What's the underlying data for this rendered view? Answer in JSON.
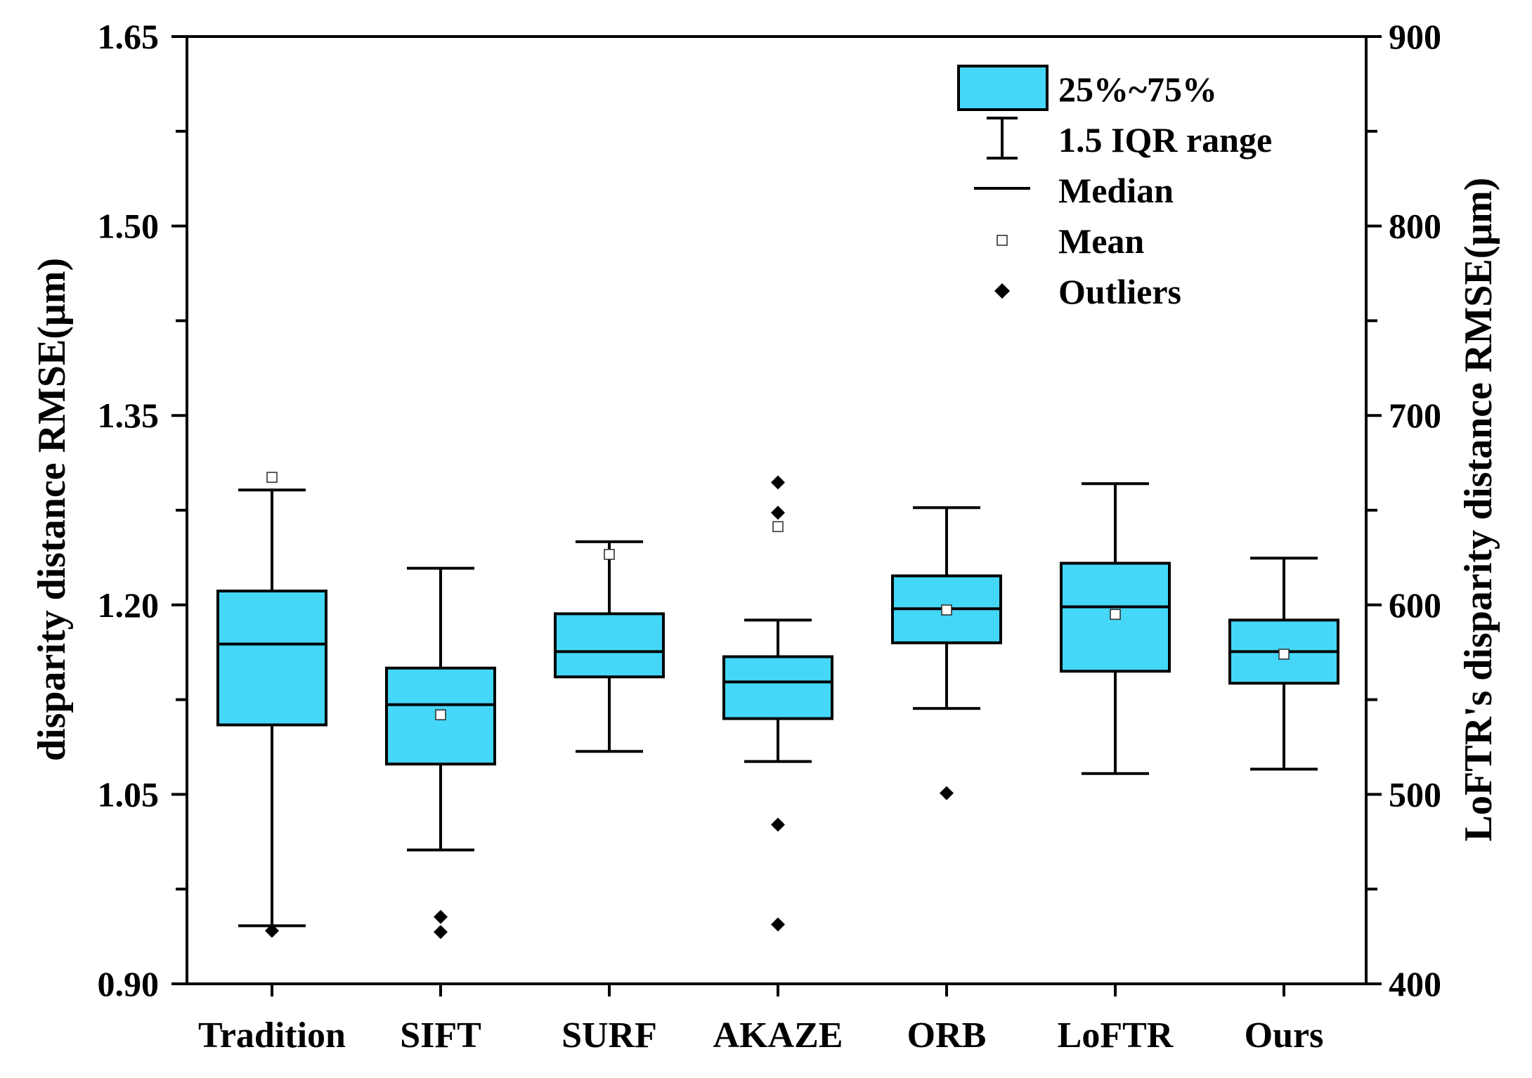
{
  "chart_data": {
    "type": "box",
    "ylabel_left": "disparity distance RMSE(μm)",
    "ylabel_right": "LoFTR's disparity distance RMSE(μm)",
    "ylim_left": [
      0.9,
      1.65
    ],
    "ylim_right": [
      400,
      900
    ],
    "yticks_left": [
      "0.90",
      "1.05",
      "1.20",
      "1.35",
      "1.50",
      "1.65"
    ],
    "yticks_right": [
      "400",
      "500",
      "600",
      "700",
      "800",
      "900"
    ],
    "categories": [
      "Tradition",
      "SIFT",
      "SURF",
      "AKAZE",
      "ORB",
      "LoFTR",
      "Ours"
    ],
    "box_color": "#44d7f8",
    "legend": {
      "position": "top-right",
      "items": [
        "25%~75%",
        "1.5 IQR range",
        "Median",
        "Mean",
        "Outliers"
      ]
    },
    "boxes": [
      {
        "name": "Tradition",
        "axis": "left",
        "whisker_low": 0.946,
        "q1": 1.105,
        "median": 1.169,
        "q3": 1.211,
        "whisker_high": 1.291,
        "mean": 1.301,
        "outliers": [
          0.942
        ]
      },
      {
        "name": "SIFT",
        "axis": "left",
        "whisker_low": 1.006,
        "q1": 1.074,
        "median": 1.121,
        "q3": 1.15,
        "whisker_high": 1.229,
        "mean": 1.113,
        "outliers": [
          0.953,
          0.941
        ]
      },
      {
        "name": "SURF",
        "axis": "left",
        "whisker_low": 1.084,
        "q1": 1.143,
        "median": 1.163,
        "q3": 1.193,
        "whisker_high": 1.25,
        "mean": 1.24,
        "outliers": []
      },
      {
        "name": "AKAZE",
        "axis": "left",
        "whisker_low": 1.076,
        "q1": 1.11,
        "median": 1.139,
        "q3": 1.159,
        "whisker_high": 1.188,
        "mean": 1.262,
        "outliers": [
          1.297,
          1.273,
          1.026,
          0.947
        ]
      },
      {
        "name": "ORB",
        "axis": "left",
        "whisker_low": 1.118,
        "q1": 1.17,
        "median": 1.197,
        "q3": 1.223,
        "whisker_high": 1.277,
        "mean": 1.196,
        "outliers": [
          1.051
        ]
      },
      {
        "name": "LoFTR",
        "axis": "right",
        "whisker_low": 511,
        "q1": 565,
        "median": 599,
        "q3": 622,
        "whisker_high": 664,
        "mean": 595,
        "outliers": []
      },
      {
        "name": "Ours",
        "axis": "left",
        "whisker_low": 1.07,
        "q1": 1.138,
        "median": 1.163,
        "q3": 1.188,
        "whisker_high": 1.237,
        "mean": 1.161,
        "outliers": []
      }
    ]
  }
}
